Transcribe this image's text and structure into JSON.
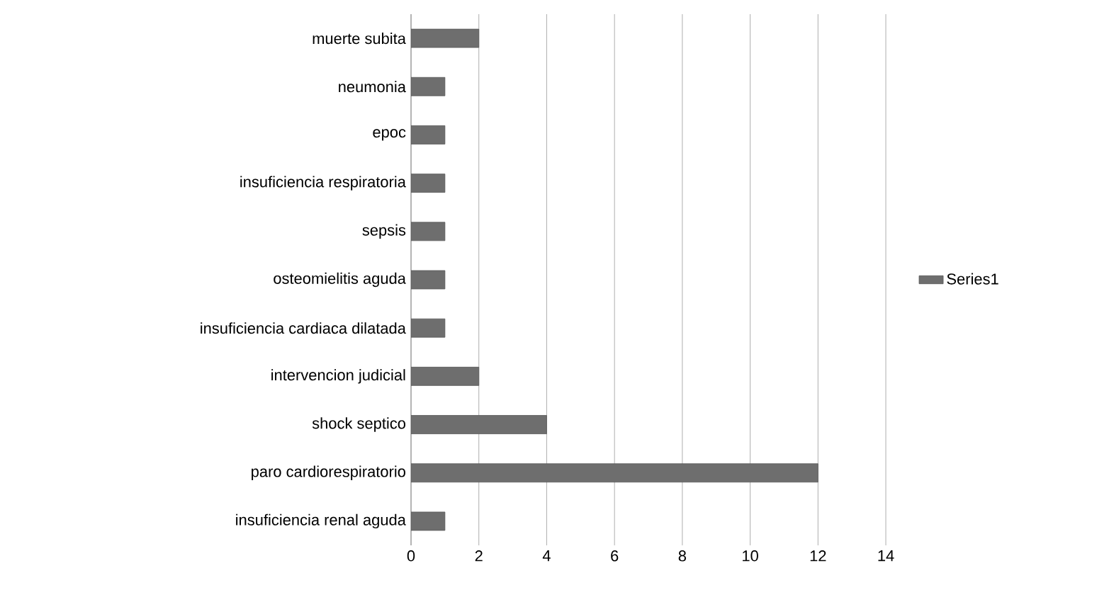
{
  "chart_data": {
    "type": "bar",
    "orientation": "horizontal",
    "categories": [
      "muerte subita",
      "neumonia",
      "epoc",
      "insuficiencia respiratoria",
      "sepsis",
      "osteomielitis aguda",
      "insuficiencia cardiaca dilatada",
      "intervencion judicial",
      "shock septico",
      "paro cardiorespiratorio",
      "insuficiencia renal aguda"
    ],
    "series": [
      {
        "name": "Series1",
        "color": "#6e6e6e",
        "values": [
          2,
          1,
          1,
          1,
          1,
          1,
          1,
          2,
          4,
          12,
          1
        ]
      }
    ],
    "xlim": [
      0,
      14
    ],
    "xticks": [
      0,
      2,
      4,
      6,
      8,
      10,
      12,
      14
    ],
    "grid": "x",
    "legend": "right"
  }
}
